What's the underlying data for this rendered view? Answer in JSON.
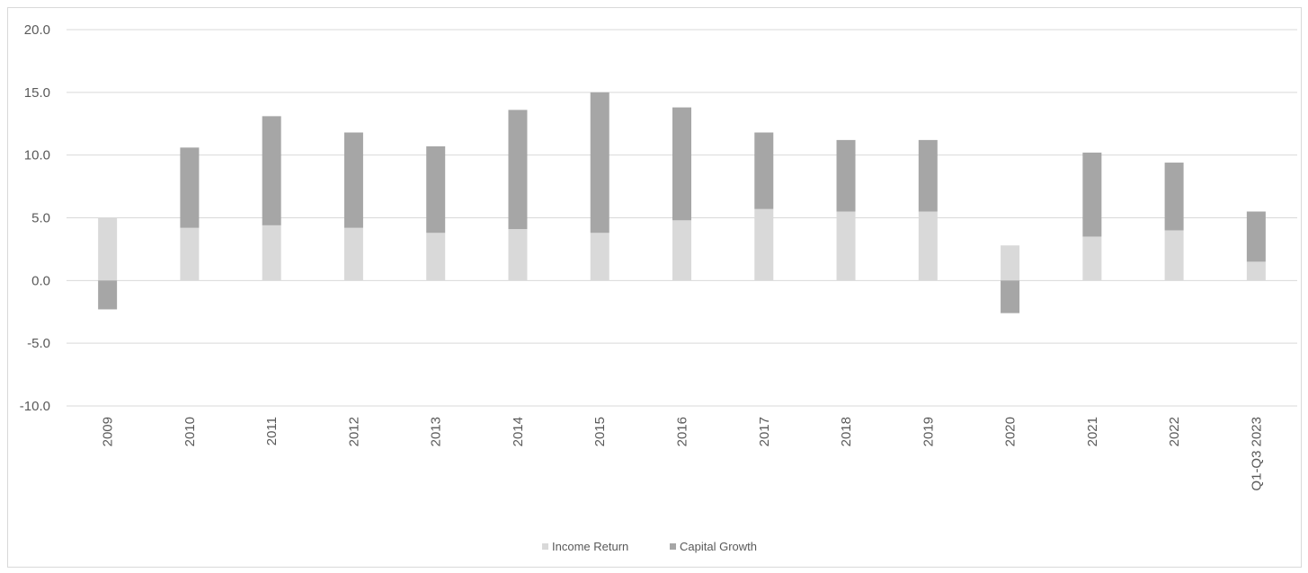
{
  "chart_data": {
    "type": "bar",
    "stacked": true,
    "categories": [
      "2009",
      "2010",
      "2011",
      "2012",
      "2013",
      "2014",
      "2015",
      "2016",
      "2017",
      "2018",
      "2019",
      "2020",
      "2021",
      "2022",
      "Q1-Q3 2023"
    ],
    "series": [
      {
        "name": "Income Return",
        "color": "#d9d9d9",
        "values": [
          5.0,
          4.2,
          4.4,
          4.2,
          3.8,
          4.1,
          3.8,
          4.8,
          5.7,
          5.5,
          5.5,
          2.8,
          3.5,
          4.0,
          1.5
        ]
      },
      {
        "name": "Capital Growth",
        "color": "#a6a6a6",
        "values": [
          -2.3,
          6.4,
          8.7,
          7.6,
          6.9,
          9.5,
          11.2,
          9.0,
          6.1,
          5.7,
          5.7,
          -2.6,
          6.7,
          5.4,
          4.0
        ]
      }
    ],
    "y_ticks": [
      "20.0",
      "15.0",
      "10.0",
      "5.0",
      "0.0",
      "-5.0",
      "-10.0"
    ],
    "ylim": [
      -10,
      20
    ],
    "grid": true,
    "legend_position": "bottom"
  }
}
